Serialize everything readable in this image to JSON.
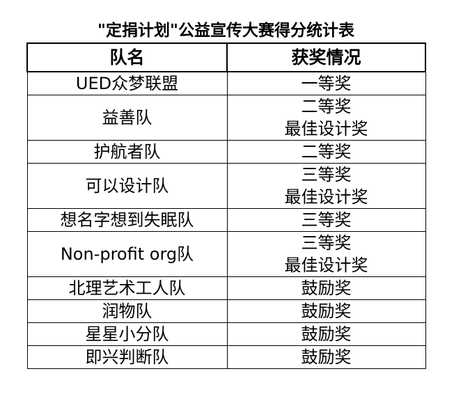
{
  "title": "\"定捐计划\"公益宣传大赛得分统计表",
  "headers": [
    "队名",
    "获奖情况"
  ],
  "rows": [
    {
      "team": "UED众梦联盟",
      "awards": [
        "一等奖"
      ]
    },
    {
      "team": "益善队",
      "awards": [
        "二等奖",
        "最佳设计奖"
      ]
    },
    {
      "team": "护航者队",
      "awards": [
        "二等奖"
      ]
    },
    {
      "team": "可以设计队",
      "awards": [
        "三等奖",
        "最佳设计奖"
      ]
    },
    {
      "team": "想名字想到失眠队",
      "awards": [
        "三等奖"
      ]
    },
    {
      "team": "Non-profit org队",
      "awards": [
        "三等奖",
        "最佳设计奖"
      ]
    },
    {
      "team": "北理艺术工人队",
      "awards": [
        "鼓励奖"
      ]
    },
    {
      "team": "润物队",
      "awards": [
        "鼓励奖"
      ]
    },
    {
      "team": "星星小分队",
      "awards": [
        "鼓励奖"
      ]
    },
    {
      "team": "即兴判断队",
      "awards": [
        "鼓励奖"
      ]
    }
  ]
}
